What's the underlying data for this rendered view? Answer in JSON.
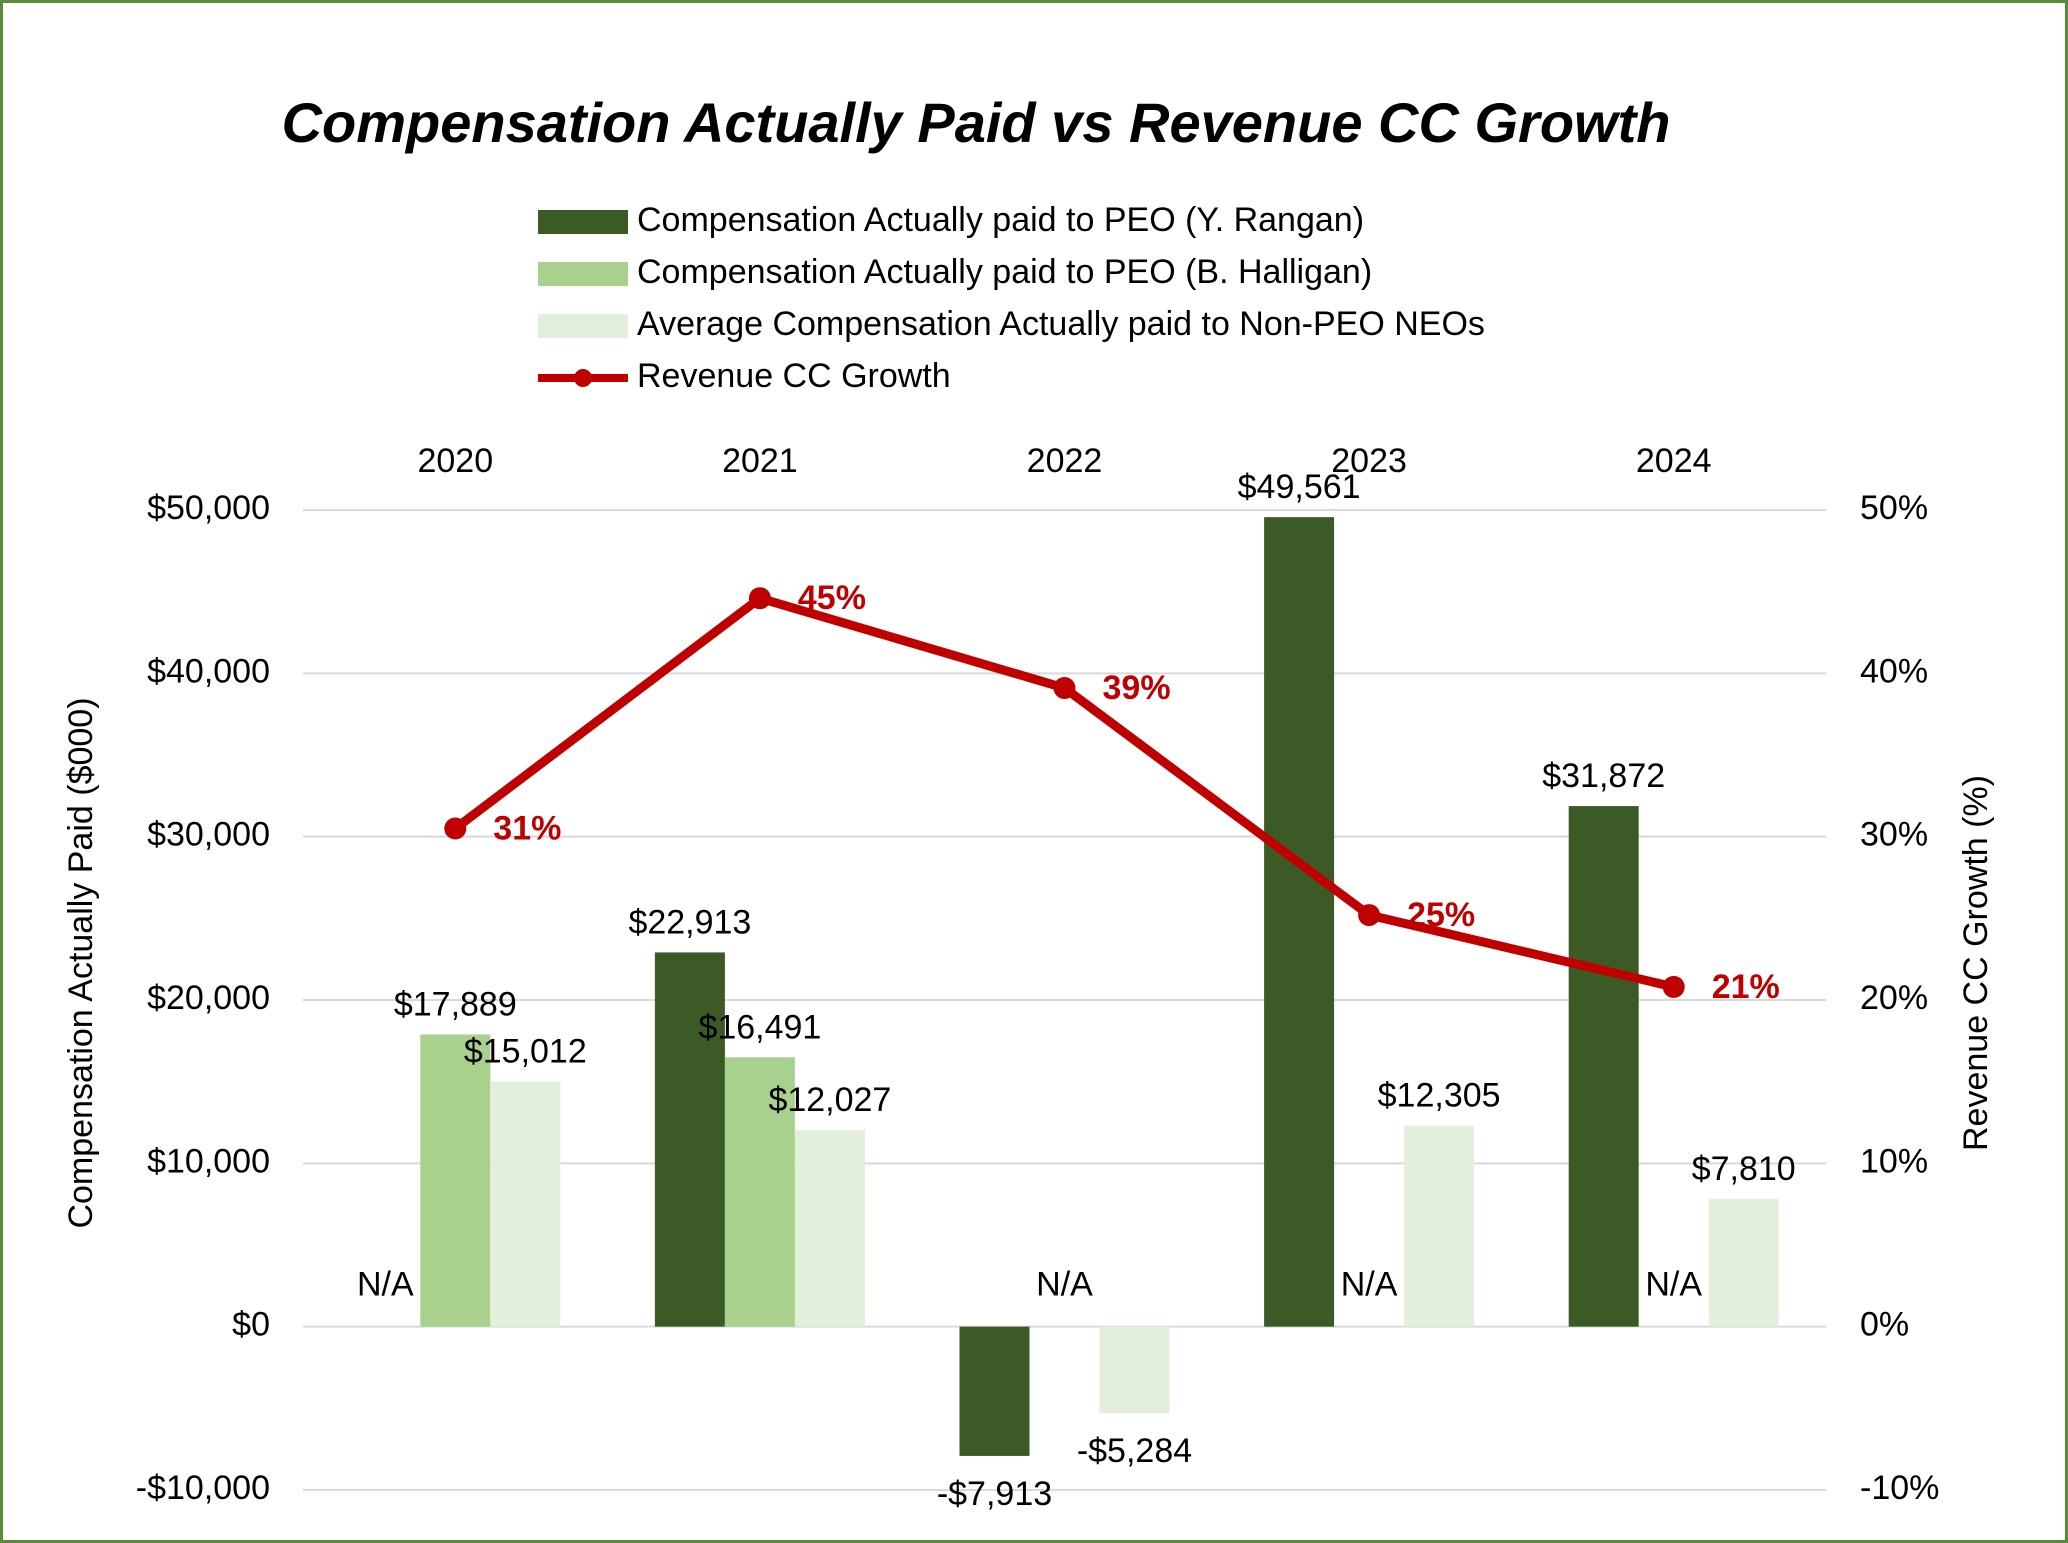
{
  "chart_data": {
    "type": "bar",
    "title": "Compensation Actually Paid vs Revenue CC Growth",
    "y_label": "Compensation Actually Paid ($000)",
    "y2_label": "Revenue CC Growth (%)",
    "categories": [
      "2020",
      "2021",
      "2022",
      "2023",
      "2024"
    ],
    "series": [
      {
        "name": "Compensation Actually paid to PEO (Y. Rangan)",
        "color": "#3b5a26",
        "values": [
          null,
          22913,
          -7913,
          49561,
          31872
        ],
        "value_labels": [
          "N/A",
          "$22,913",
          "-$7,913",
          "$49,561",
          "$31,872"
        ]
      },
      {
        "name": "Compensation Actually paid to PEO (B. Halligan)",
        "color": "#a9d18e",
        "values": [
          17889,
          16491,
          null,
          null,
          null
        ],
        "value_labels": [
          "$17,889",
          "$16,491",
          "N/A",
          "N/A",
          "N/A"
        ]
      },
      {
        "name": "Average Compensation Actually paid to Non-PEO NEOs",
        "color": "#e2efda",
        "values": [
          15012,
          12027,
          -5284,
          12305,
          7810
        ],
        "value_labels": [
          "$15,012",
          "$12,027",
          "-$5,284",
          "$12,305",
          "$7,810"
        ]
      },
      {
        "name": "Revenue CC Growth",
        "type": "line",
        "axis": "y2",
        "color": "#c00000",
        "values": [
          30.5,
          44.6,
          39.1,
          25.2,
          20.8
        ],
        "value_labels": [
          "31%",
          "45%",
          "39%",
          "25%",
          "21%"
        ]
      }
    ],
    "ylim": [
      -10000,
      50000
    ],
    "yticks": [
      {
        "value": -10000,
        "label": "-$10,000"
      },
      {
        "value": 0,
        "label": "$0"
      },
      {
        "value": 10000,
        "label": "$10,000"
      },
      {
        "value": 20000,
        "label": "$20,000"
      },
      {
        "value": 30000,
        "label": "$30,000"
      },
      {
        "value": 40000,
        "label": "$40,000"
      },
      {
        "value": 50000,
        "label": "$50,000"
      }
    ],
    "y2lim": [
      -10,
      50
    ],
    "y2ticks": [
      {
        "value": -10,
        "label": "-10%"
      },
      {
        "value": 0,
        "label": "0%"
      },
      {
        "value": 10,
        "label": "10%"
      },
      {
        "value": 20,
        "label": "20%"
      },
      {
        "value": 30,
        "label": "30%"
      },
      {
        "value": 40,
        "label": "40%"
      },
      {
        "value": 50,
        "label": "50%"
      }
    ],
    "grid": true,
    "legend": "top"
  }
}
